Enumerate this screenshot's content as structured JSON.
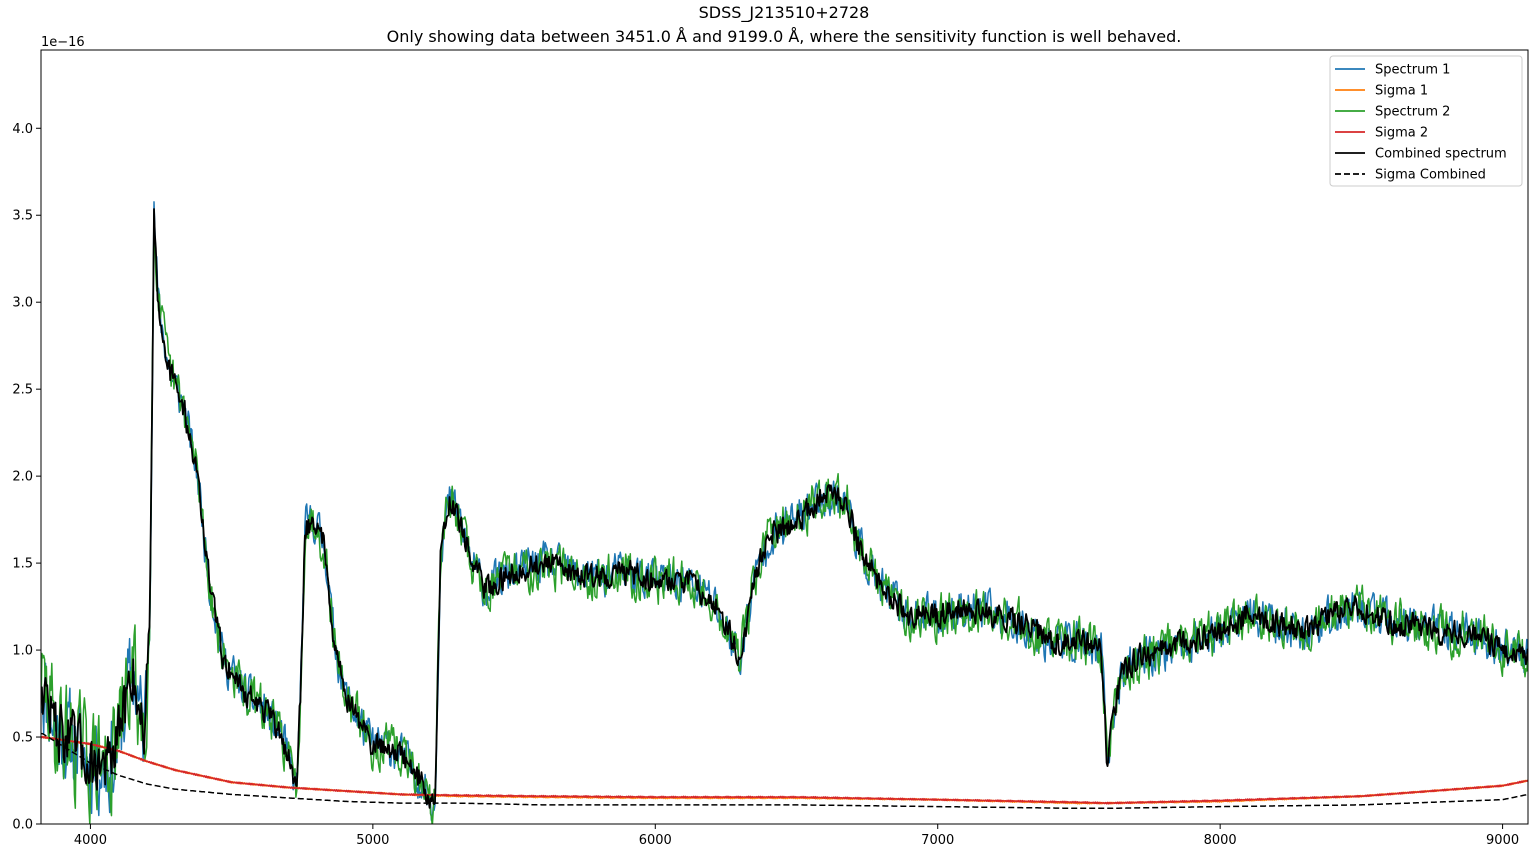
{
  "chart_data": {
    "type": "line",
    "title": "SDSS_J213510+2728",
    "subtitle": "Only showing data between 3451.0 Å and 9199.0 Å, where the sensitivity function is well behaved.",
    "xlabel": "",
    "ylabel": "",
    "y_offset_text": "1e−16",
    "xlim": [
      3825,
      9090
    ],
    "ylim": [
      0,
      4.45
    ],
    "x_ticks": [
      4000,
      5000,
      6000,
      7000,
      8000,
      9000
    ],
    "x_tick_labels": [
      "4000",
      "5000",
      "6000",
      "7000",
      "8000",
      "9000"
    ],
    "y_ticks": [
      0.0,
      0.5,
      1.0,
      1.5,
      2.0,
      2.5,
      3.0,
      3.5,
      4.0
    ],
    "y_tick_labels": [
      "0.0",
      "0.5",
      "1.0",
      "1.5",
      "2.0",
      "2.5",
      "3.0",
      "3.5",
      "4.0"
    ],
    "grid": false,
    "legend_position": "top-right",
    "flux_unit_scale": "1e-16",
    "continuum_knots": {
      "x": [
        3830,
        3880,
        3950,
        4000,
        4080,
        4150,
        4190,
        4210,
        4225,
        4240,
        4280,
        4330,
        4380,
        4420,
        4470,
        4550,
        4620,
        4680,
        4730,
        4745,
        4760,
        4790,
        4830,
        4860,
        4900,
        4950,
        5000,
        5050,
        5100,
        5150,
        5200,
        5220,
        5240,
        5270,
        5300,
        5350,
        5400,
        5500,
        5600,
        5700,
        5800,
        5900,
        6000,
        6100,
        6200,
        6260,
        6300,
        6350,
        6400,
        6500,
        6600,
        6680,
        6720,
        6800,
        6900,
        7000,
        7100,
        7200,
        7300,
        7400,
        7500,
        7580,
        7600,
        7620,
        7650,
        7700,
        7800,
        7900,
        8000,
        8100,
        8200,
        8300,
        8400,
        8500,
        8600,
        8700,
        8800,
        8900,
        9000,
        9090
      ],
      "y": [
        0.8,
        0.55,
        0.45,
        0.35,
        0.35,
        0.9,
        0.5,
        1.2,
        3.5,
        3.0,
        2.6,
        2.4,
        2.0,
        1.4,
        0.95,
        0.75,
        0.65,
        0.5,
        0.2,
        0.8,
        1.7,
        1.75,
        1.6,
        1.1,
        0.75,
        0.6,
        0.45,
        0.45,
        0.4,
        0.3,
        0.15,
        0.1,
        1.6,
        1.85,
        1.8,
        1.5,
        1.35,
        1.45,
        1.5,
        1.45,
        1.42,
        1.45,
        1.4,
        1.4,
        1.3,
        1.1,
        0.95,
        1.4,
        1.65,
        1.75,
        1.9,
        1.85,
        1.6,
        1.35,
        1.2,
        1.2,
        1.25,
        1.2,
        1.15,
        1.05,
        1.05,
        1.0,
        0.35,
        0.6,
        0.85,
        0.95,
        1.0,
        1.05,
        1.1,
        1.2,
        1.15,
        1.1,
        1.2,
        1.25,
        1.15,
        1.15,
        1.1,
        1.1,
        1.0,
        0.95
      ]
    },
    "sigma1_knots": {
      "x": [
        3830,
        4000,
        4100,
        4200,
        4300,
        4500,
        4700,
        4900,
        5100,
        5300,
        5600,
        6000,
        6500,
        7000,
        7500,
        7600,
        8000,
        8500,
        9000,
        9090
      ],
      "y": [
        0.5,
        0.46,
        0.42,
        0.36,
        0.31,
        0.24,
        0.21,
        0.19,
        0.17,
        0.16,
        0.155,
        0.15,
        0.15,
        0.14,
        0.12,
        0.12,
        0.13,
        0.16,
        0.22,
        0.25
      ]
    },
    "sigma2_knots": {
      "x": [
        3830,
        4000,
        4100,
        4200,
        4300,
        4500,
        4700,
        4900,
        5100,
        5300,
        5600,
        6000,
        6500,
        7000,
        7500,
        7600,
        8000,
        8500,
        9000,
        9090
      ],
      "y": [
        0.5,
        0.46,
        0.42,
        0.36,
        0.31,
        0.24,
        0.21,
        0.19,
        0.17,
        0.165,
        0.16,
        0.155,
        0.155,
        0.14,
        0.125,
        0.12,
        0.135,
        0.16,
        0.22,
        0.25
      ]
    },
    "sigma_combined_knots": {
      "x": [
        3830,
        3900,
        4000,
        4100,
        4200,
        4300,
        4500,
        4700,
        4900,
        5100,
        5300,
        5600,
        6000,
        6500,
        7000,
        7500,
        7600,
        8000,
        8500,
        9000,
        9090
      ],
      "y": [
        0.52,
        0.45,
        0.35,
        0.28,
        0.23,
        0.2,
        0.17,
        0.15,
        0.13,
        0.12,
        0.12,
        0.11,
        0.11,
        0.11,
        0.1,
        0.09,
        0.09,
        0.1,
        0.11,
        0.14,
        0.17
      ]
    },
    "series": [
      {
        "name": "Spectrum 1",
        "color": "#1f77b4",
        "style": "solid",
        "source": "continuum_knots",
        "noise": 0.16
      },
      {
        "name": "Sigma 1",
        "color": "#ff7f0e",
        "style": "solid",
        "source": "sigma1_knots",
        "noise": 0.0
      },
      {
        "name": "Spectrum 2",
        "color": "#2ca02c",
        "style": "solid",
        "source": "continuum_knots",
        "noise": 0.18
      },
      {
        "name": "Sigma 2",
        "color": "#d62728",
        "style": "solid",
        "source": "sigma2_knots",
        "noise": 0.0
      },
      {
        "name": "Combined spectrum",
        "color": "#000000",
        "style": "solid",
        "source": "continuum_knots",
        "noise": 0.1
      },
      {
        "name": "Sigma Combined",
        "color": "#000000",
        "style": "dashed",
        "source": "sigma_combined_knots",
        "noise": 0.0
      }
    ]
  }
}
